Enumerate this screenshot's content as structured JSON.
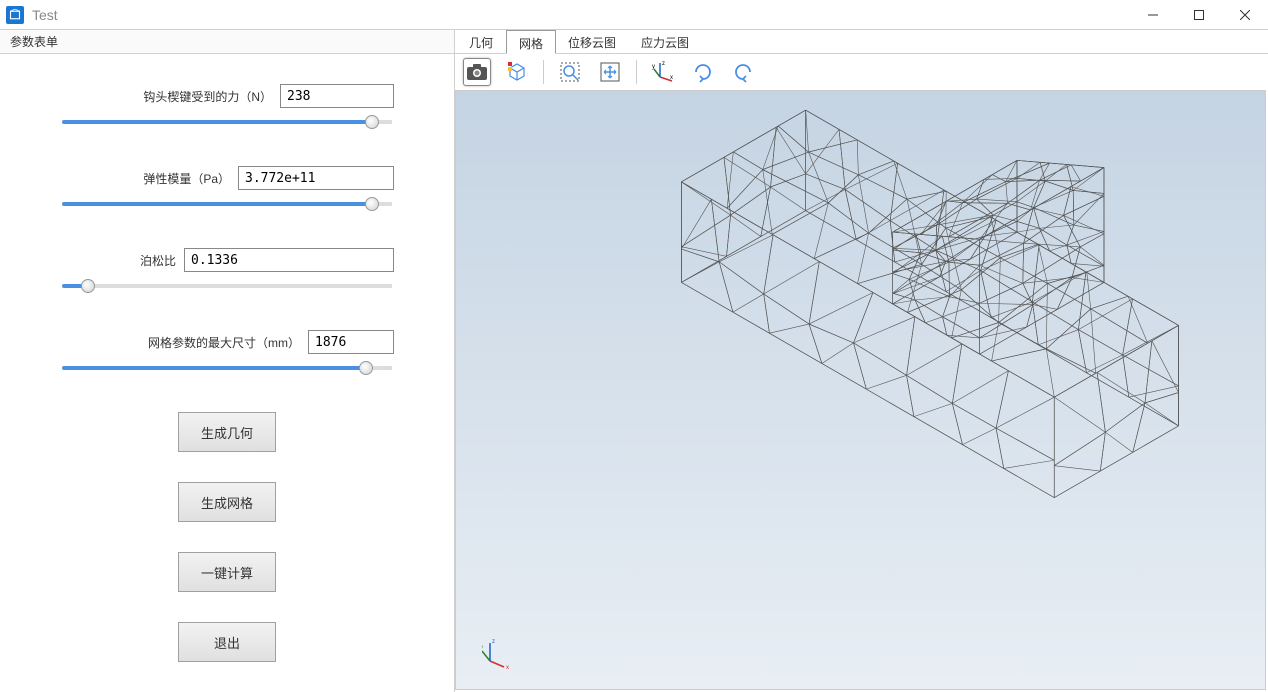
{
  "window": {
    "title": "Test"
  },
  "panel": {
    "header": "参数表单",
    "params": [
      {
        "label": "钩头楔键受到的力（N）",
        "value": "238",
        "input_width": 114,
        "thumb_pct": 94,
        "fill_pct": 6
      },
      {
        "label": "弹性模量（Pa）",
        "value": "3.772e+11",
        "input_width": 156,
        "thumb_pct": 94,
        "fill_pct": 6
      },
      {
        "label": "泊松比",
        "value": "0.1336",
        "input_width": 210,
        "thumb_pct": 8,
        "fill_pct": 92
      },
      {
        "label": "网格参数的最大尺寸（mm）",
        "value": "1876",
        "input_width": 86,
        "thumb_pct": 92,
        "fill_pct": 8
      }
    ],
    "buttons": [
      {
        "label": "生成几何",
        "name": "generate-geometry-button"
      },
      {
        "label": "生成网格",
        "name": "generate-mesh-button"
      },
      {
        "label": "一键计算",
        "name": "one-click-compute-button"
      },
      {
        "label": "退出",
        "name": "exit-button"
      }
    ]
  },
  "tabs": {
    "items": [
      {
        "label": "几何",
        "name": "tab-geometry",
        "active": false
      },
      {
        "label": "网格",
        "name": "tab-mesh",
        "active": true
      },
      {
        "label": "位移云图",
        "name": "tab-displacement",
        "active": false
      },
      {
        "label": "应力云图",
        "name": "tab-stress",
        "active": false
      }
    ]
  },
  "toolbar_icons": [
    {
      "name": "camera-icon",
      "active": true
    },
    {
      "name": "cube-view-icon",
      "active": false
    },
    {
      "sep": true
    },
    {
      "name": "zoom-window-icon",
      "active": false
    },
    {
      "name": "pan-icon",
      "active": false
    },
    {
      "sep": true
    },
    {
      "name": "axis-icon",
      "active": false
    },
    {
      "name": "rotate-cw-icon",
      "active": false
    },
    {
      "name": "rotate-ccw-icon",
      "active": false
    }
  ],
  "viewport": {
    "background_top": "#c5d4e3",
    "background_bottom": "#e8eef4",
    "mesh_stroke": "#555555",
    "mesh_stroke_width": 0.6,
    "axis_colors": {
      "x": "#d32f2f",
      "y": "#2e7d32",
      "z": "#1565c0"
    }
  }
}
